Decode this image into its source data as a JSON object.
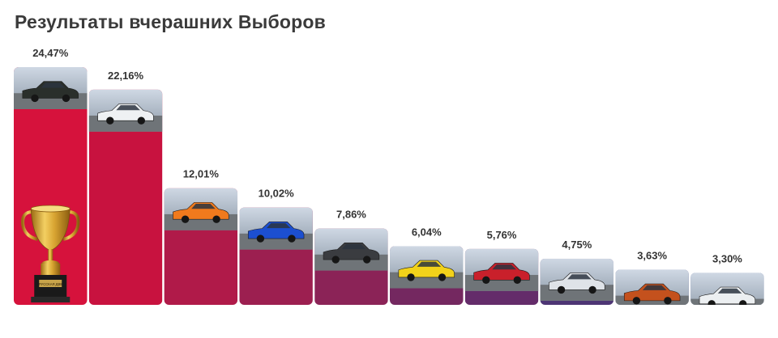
{
  "chart_data": {
    "type": "bar",
    "title": "Результаты вчерашних Выборов",
    "categories": [
      "",
      "",
      "",
      "",
      "",
      "",
      "",
      "",
      "",
      ""
    ],
    "values": [
      24.47,
      22.16,
      12.01,
      10.02,
      7.86,
      6.04,
      5.76,
      4.75,
      3.63,
      3.3
    ],
    "labels": [
      "24,47%",
      "22,16%",
      "12,01%",
      "10,02%",
      "7,86%",
      "6,04%",
      "5,76%",
      "4,75%",
      "3,63%",
      "3,30%"
    ],
    "unit": "%",
    "ylim": [
      0,
      24.47
    ],
    "grid": false,
    "legend": "none",
    "colors": [
      "#d6123c",
      "#c8123f",
      "#b01a49",
      "#9c1f50",
      "#8b2357",
      "#742860",
      "#642c6a",
      "#4d3574",
      "#3a3b7f",
      "#2c4486"
    ],
    "thumbnail_icons": [
      "car-photo-icon",
      "car-photo-icon",
      "car-photo-icon",
      "car-photo-icon",
      "car-photo-icon",
      "car-photo-icon",
      "car-photo-icon",
      "car-photo-icon",
      "car-photo-icon",
      "car-photo-icon"
    ],
    "trophy_icon": "trophy-icon",
    "trophy_plate_text": "РУССКАЯ ДВ8"
  }
}
